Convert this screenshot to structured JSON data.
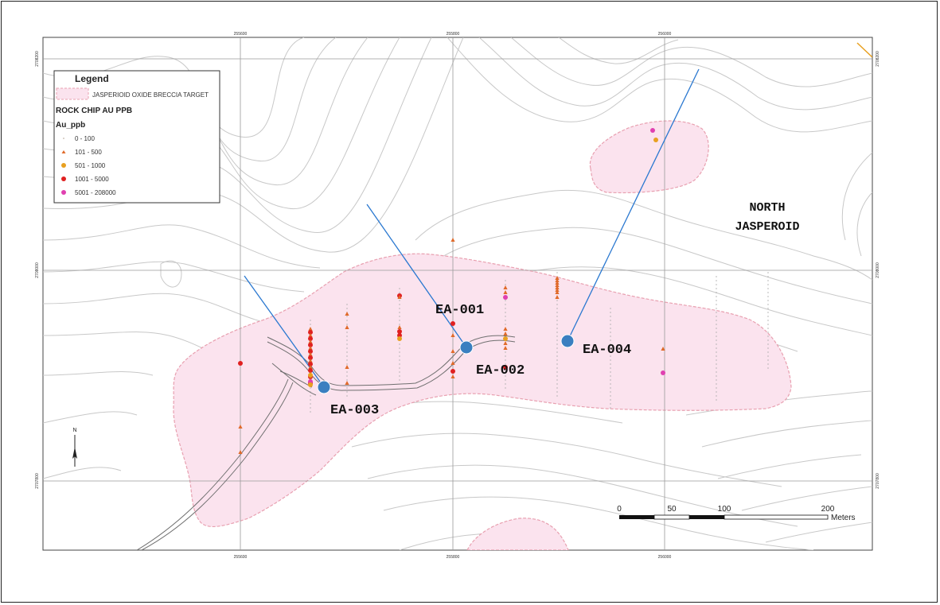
{
  "legend": {
    "title": "Legend",
    "target_label": "JASPERIOID OXIDE BRECCIA TARGET",
    "rock_chip_title": "ROCK CHIP AU PPB",
    "field_name": "Au_ppb",
    "classes": [
      {
        "label": "0 - 100",
        "color": "#b0a090",
        "symbol": "dot"
      },
      {
        "label": "101 - 500",
        "color": "#e06a2a",
        "symbol": "triangle"
      },
      {
        "label": "501 - 1000",
        "color": "#e8a020",
        "symbol": "circle"
      },
      {
        "label": "1001 - 5000",
        "color": "#e02020",
        "symbol": "circle"
      },
      {
        "label": "5001 - 208000",
        "color": "#e040b0",
        "symbol": "circle"
      }
    ]
  },
  "drill_holes": [
    {
      "id": "EA-001"
    },
    {
      "id": "EA-002"
    },
    {
      "id": "EA-003"
    },
    {
      "id": "EA-004"
    }
  ],
  "area_label_line1": "NORTH",
  "area_label_line2": "JASPEROID",
  "north_arrow_label": "N",
  "scale_bar": {
    "ticks": [
      "0",
      "50",
      "100",
      "200"
    ],
    "unit": "Meters"
  },
  "grid_labels": {
    "top": [
      "255600",
      "255800",
      "256000"
    ],
    "bottom": [
      "255600",
      "255800",
      "256000"
    ],
    "left": [
      "2708200",
      "2708000",
      "2707800"
    ],
    "right": [
      "2708200",
      "2708000",
      "2707800"
    ]
  },
  "colors": {
    "target_fill": "#fbe3ee",
    "target_outline": "#e8a0b0",
    "contour": "#c8c8c8",
    "drill_trace": "#2a78d0",
    "collar": "#3a7fc0",
    "road": "#777777"
  }
}
